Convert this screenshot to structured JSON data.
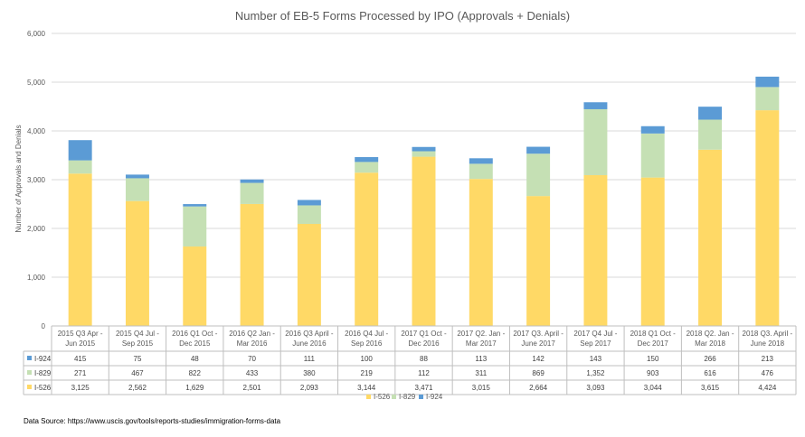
{
  "chart_data": {
    "type": "bar",
    "stacked": true,
    "title": "Number of EB-5 Forms Processed by IPO (Approvals + Denials)",
    "ylabel": "Number of Approvals and Denials",
    "xlabel": "",
    "ylim": [
      0,
      6000
    ],
    "yticks": [
      0,
      1000,
      2000,
      3000,
      4000,
      5000,
      6000
    ],
    "ytick_labels": [
      "0",
      "1,000",
      "2,000",
      "3,000",
      "4,000",
      "5,000",
      "6,000"
    ],
    "grid": true,
    "legend_position": "bottom",
    "categories": [
      [
        "2015 Q3 Apr -",
        "Jun 2015"
      ],
      [
        "2015 Q4 Jul -",
        "Sep 2015"
      ],
      [
        "2016 Q1 Oct -",
        "Dec 2015"
      ],
      [
        "2016 Q2 Jan -",
        "Mar 2016"
      ],
      [
        "2016 Q3 April -",
        "June 2016"
      ],
      [
        "2016 Q4 Jul -",
        "Sep 2016"
      ],
      [
        "2017 Q1 Oct -",
        "Dec 2016"
      ],
      [
        "2017 Q2. Jan -",
        "Mar 2017"
      ],
      [
        "2017 Q3. April -",
        "June 2017"
      ],
      [
        "2017 Q4 Jul -",
        "Sep 2017"
      ],
      [
        "2018 Q1 Oct -",
        "Dec 2017"
      ],
      [
        "2018 Q2. Jan -",
        "Mar 2018"
      ],
      [
        "2018 Q3. April -",
        "June 2018"
      ]
    ],
    "series": [
      {
        "name": "I-526",
        "color": "#FFD966",
        "values": [
          3125,
          2562,
          1629,
          2501,
          2093,
          3144,
          3471,
          3015,
          2664,
          3093,
          3044,
          3615,
          4424
        ],
        "labels": [
          "3,125",
          "2,562",
          "1,629",
          "2,501",
          "2,093",
          "3,144",
          "3,471",
          "3,015",
          "2,664",
          "3,093",
          "3,044",
          "3,615",
          "4,424"
        ]
      },
      {
        "name": "I-829",
        "color": "#C5E0B4",
        "values": [
          271,
          467,
          822,
          433,
          380,
          219,
          112,
          311,
          869,
          1352,
          903,
          616,
          476
        ],
        "labels": [
          "271",
          "467",
          "822",
          "433",
          "380",
          "219",
          "112",
          "311",
          "869",
          "1,352",
          "903",
          "616",
          "476"
        ]
      },
      {
        "name": "I-924",
        "color": "#5B9BD5",
        "values": [
          415,
          75,
          48,
          70,
          111,
          100,
          88,
          113,
          142,
          143,
          150,
          266,
          213
        ],
        "labels": [
          "415",
          "75",
          "48",
          "70",
          "111",
          "100",
          "88",
          "113",
          "142",
          "143",
          "150",
          "266",
          "213"
        ]
      }
    ],
    "table_row_order": [
      "I-924",
      "I-829",
      "I-526"
    ]
  },
  "footer": {
    "source": "Data Source: https://www.uscis.gov/tools/reports-studies/immigration-forms-data"
  }
}
